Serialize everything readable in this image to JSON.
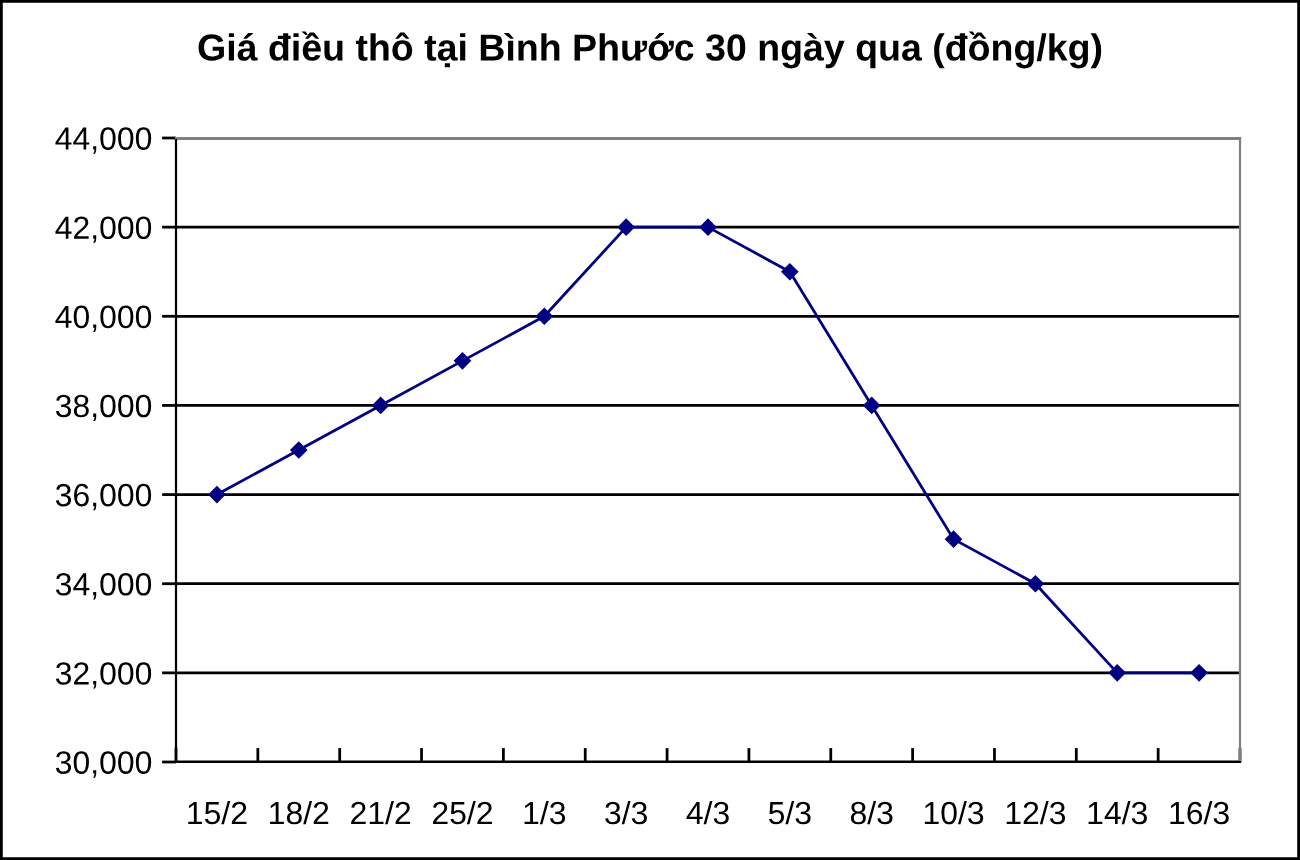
{
  "chart_data": {
    "type": "line",
    "title": "Giá điều thô tại Bình Phước 30 ngày qua (đồng/kg)",
    "categories": [
      "15/2",
      "18/2",
      "21/2",
      "25/2",
      "1/3",
      "3/3",
      "4/3",
      "5/3",
      "8/3",
      "10/3",
      "12/3",
      "14/3",
      "16/3"
    ],
    "series": [
      {
        "color": "#000080",
        "values": [
          36000,
          37000,
          38000,
          39000,
          40000,
          42000,
          42000,
          41000,
          38000,
          35000,
          34000,
          32000,
          32000
        ]
      }
    ],
    "ylim": [
      30000,
      44000
    ],
    "yticks": [
      {
        "value": 30000,
        "label": "30,000"
      },
      {
        "value": 32000,
        "label": "32,000"
      },
      {
        "value": 34000,
        "label": "34,000"
      },
      {
        "value": 36000,
        "label": "36,000"
      },
      {
        "value": 38000,
        "label": "38,000"
      },
      {
        "value": 40000,
        "label": "40,000"
      },
      {
        "value": 42000,
        "label": "42,000"
      },
      {
        "value": 44000,
        "label": "44,000"
      }
    ],
    "grid": "y",
    "marker": "diamond",
    "line_style": "solid"
  }
}
